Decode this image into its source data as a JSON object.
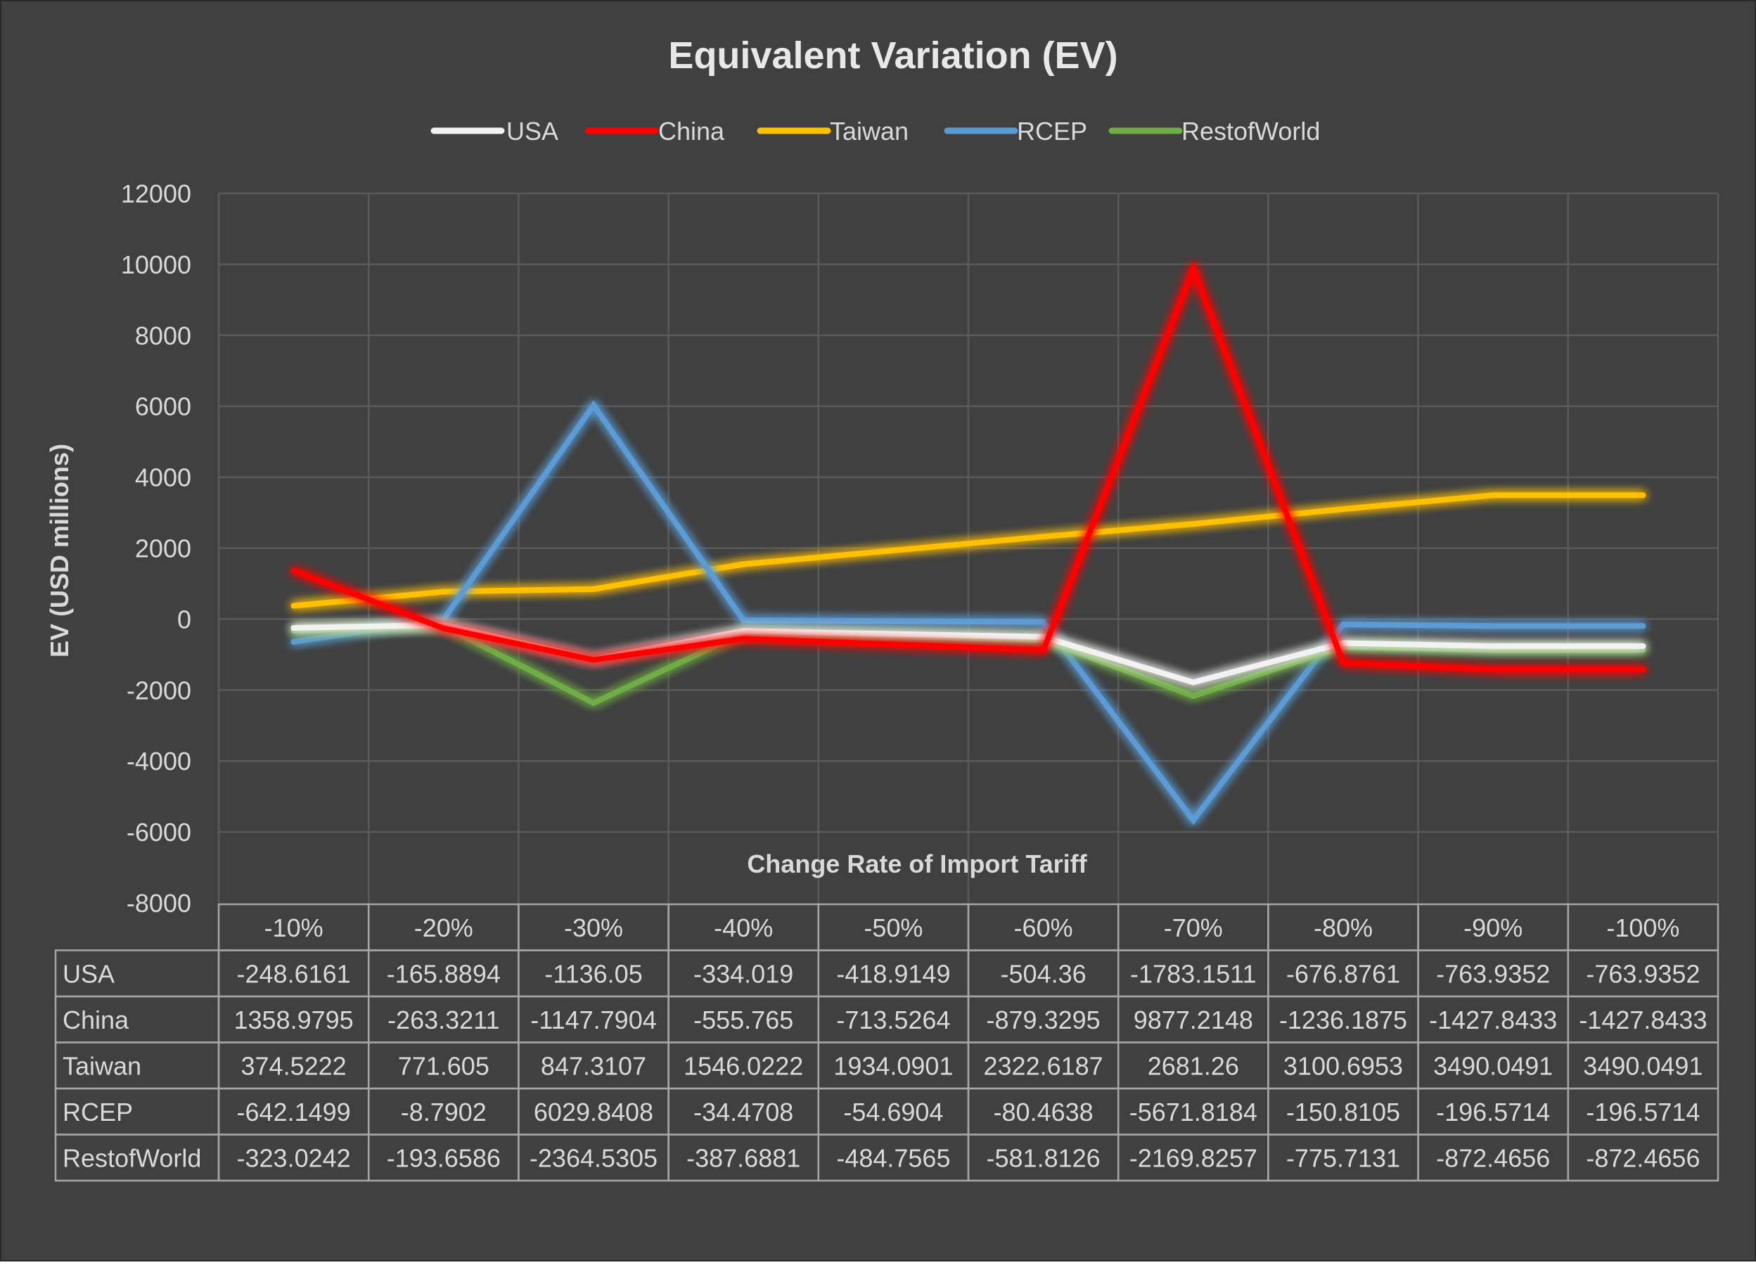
{
  "chart_data": {
    "type": "line",
    "title": "Equivalent Variation (EV)",
    "xlabel": "Change Rate of Import Tariff",
    "ylabel": "EV (USD millions)",
    "categories": [
      "-10%",
      "-20%",
      "-30%",
      "-40%",
      "-50%",
      "-60%",
      "-70%",
      "-80%",
      "-90%",
      "-100%"
    ],
    "y_ticks": [
      12000,
      10000,
      8000,
      6000,
      4000,
      2000,
      0,
      -2000,
      -4000,
      -6000,
      -8000
    ],
    "ylim": [
      -8000,
      12000
    ],
    "grid": true,
    "legend_position": "top",
    "data_table": true,
    "series": [
      {
        "name": "USA",
        "color": "#F2F2F2",
        "values": [
          -248.6161,
          -165.8894,
          -1136.05,
          -334.019,
          -418.9149,
          -504.36,
          -1783.1511,
          -676.8761,
          -763.9352,
          -763.9352
        ],
        "labels": [
          "-248.6161",
          "-165.8894",
          "-1136.05",
          "-334.019",
          "-418.9149",
          "-504.36",
          "-1783.1511",
          "-676.8761",
          "-763.9352",
          "-763.9352"
        ]
      },
      {
        "name": "China",
        "color": "#FF0000",
        "values": [
          1358.9795,
          -263.3211,
          -1147.7904,
          -555.765,
          -713.5264,
          -879.3295,
          9877.2148,
          -1236.1875,
          -1427.8433,
          -1427.8433
        ],
        "labels": [
          "1358.9795",
          "-263.3211",
          "-1147.7904",
          "-555.765",
          "-713.5264",
          "-879.3295",
          "9877.2148",
          "-1236.1875",
          "-1427.8433",
          "-1427.8433"
        ]
      },
      {
        "name": "Taiwan",
        "color": "#FFC000",
        "values": [
          374.5222,
          771.605,
          847.3107,
          1546.0222,
          1934.0901,
          2322.6187,
          2681.26,
          3100.6953,
          3490.0491,
          3490.0491
        ],
        "labels": [
          "374.5222",
          "771.605",
          "847.3107",
          "1546.0222",
          "1934.0901",
          "2322.6187",
          "2681.26",
          "3100.6953",
          "3490.0491",
          "3490.0491"
        ]
      },
      {
        "name": "RCEP",
        "color": "#5B9BD5",
        "values": [
          -642.1499,
          -8.7902,
          6029.8408,
          -34.4708,
          -54.6904,
          -80.4638,
          -5671.8184,
          -150.8105,
          -196.5714,
          -196.5714
        ],
        "labels": [
          "-642.1499",
          "-8.7902",
          "6029.8408",
          "-34.4708",
          "-54.6904",
          "-80.4638",
          "-5671.8184",
          "-150.8105",
          "-196.5714",
          "-196.5714"
        ]
      },
      {
        "name": "RestofWorld",
        "color": "#70AD47",
        "values": [
          -323.0242,
          -193.6586,
          -2364.5305,
          -387.6881,
          -484.7565,
          -581.8126,
          -2169.8257,
          -775.7131,
          -872.4656,
          -872.4656
        ],
        "labels": [
          "-323.0242",
          "-193.6586",
          "-2364.5305",
          "-387.6881",
          "-484.7565",
          "-581.8126",
          "-2169.8257",
          "-775.7131",
          "-872.4656",
          "-872.4656"
        ]
      }
    ]
  },
  "style": {
    "background": "#404040",
    "grid_color": "#5A5A5A",
    "text_color": "#D9D9D9",
    "title_color": "#E8E8E8",
    "table_border": "#A6A6A6"
  }
}
